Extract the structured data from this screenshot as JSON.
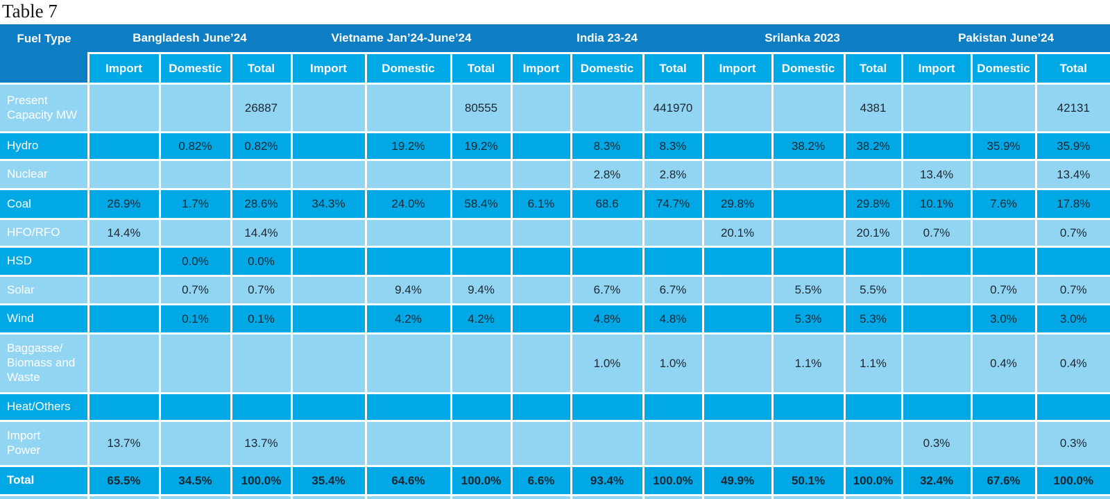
{
  "title": "Table 7",
  "colors": {
    "header_dark": "#0d7dc4",
    "row_medium": "#00a9e6",
    "row_light": "#92d5f3",
    "text_dark": "#1b2631",
    "text_light": "#ffffff"
  },
  "table": {
    "corner_label": "Fuel Type",
    "groups": [
      {
        "label": "Bangladesh June’24"
      },
      {
        "label": "Vietname Jan’24-June’24"
      },
      {
        "label": "India 23-24"
      },
      {
        "label": "Srilanka 2023"
      },
      {
        "label": "Pakistan June’24"
      }
    ],
    "sub_headers": [
      "Import",
      "Domestic",
      "Total"
    ],
    "rows": [
      {
        "label": "Present\nCapacity MW",
        "values": [
          "",
          "",
          "26887",
          "",
          "",
          "80555",
          "",
          "",
          "441970",
          "",
          "",
          "4381",
          "",
          "",
          "42131"
        ],
        "bold": false
      },
      {
        "label": "Hydro",
        "values": [
          "",
          "0.82%",
          "0.82%",
          "",
          "19.2%",
          "19.2%",
          "",
          "8.3%",
          "8.3%",
          "",
          "38.2%",
          "38.2%",
          "",
          "35.9%",
          "35.9%"
        ],
        "bold": false
      },
      {
        "label": "Nuclear",
        "values": [
          "",
          "",
          "",
          "",
          "",
          "",
          "",
          "2.8%",
          "2.8%",
          "",
          "",
          "",
          "13.4%",
          "",
          "13.4%"
        ],
        "bold": false
      },
      {
        "label": "Coal",
        "values": [
          "26.9%",
          "1.7%",
          "28.6%",
          "34.3%",
          "24.0%",
          "58.4%",
          "6.1%",
          "68.6",
          "74.7%",
          "29.8%",
          "",
          "29.8%",
          "10.1%",
          "7.6%",
          "17.8%"
        ],
        "bold": false
      },
      {
        "label": "HFO/RFO",
        "values": [
          "14.4%",
          "",
          "14.4%",
          "",
          "",
          "",
          "",
          "",
          "",
          "20.1%",
          "",
          "20.1%",
          "0.7%",
          "",
          "0.7%"
        ],
        "bold": false
      },
      {
        "label": "HSD",
        "values": [
          "",
          "0.0%",
          "0.0%",
          "",
          "",
          "",
          "",
          "",
          "",
          "",
          "",
          "",
          "",
          "",
          ""
        ],
        "bold": false
      },
      {
        "label": "Solar",
        "values": [
          "",
          "0.7%",
          "0.7%",
          "",
          "9.4%",
          "9.4%",
          "",
          "6.7%",
          "6.7%",
          "",
          "5.5%",
          "5.5%",
          "",
          "0.7%",
          "0.7%"
        ],
        "bold": false
      },
      {
        "label": "Wind",
        "values": [
          "",
          "0.1%",
          "0.1%",
          "",
          "4.2%",
          "4.2%",
          "",
          "4.8%",
          "4.8%",
          "",
          "5.3%",
          "5.3%",
          "",
          "3.0%",
          "3.0%"
        ],
        "bold": false
      },
      {
        "label": "Baggasse/\nBiomass and\nWaste",
        "values": [
          "",
          "",
          "",
          "",
          "",
          "",
          "",
          "1.0%",
          "1.0%",
          "",
          "1.1%",
          "1.1%",
          "",
          "0.4%",
          "0.4%"
        ],
        "bold": false
      },
      {
        "label": "Heat/Others",
        "values": [
          "",
          "",
          "",
          "",
          "",
          "",
          "",
          "",
          "",
          "",
          "",
          "",
          "",
          "",
          ""
        ],
        "bold": false
      },
      {
        "label": "Import\nPower",
        "values": [
          "13.7%",
          "",
          "13.7%",
          "",
          "",
          "",
          "",
          "",
          "",
          "",
          "",
          "",
          "0.3%",
          "",
          "0.3%"
        ],
        "bold": false
      },
      {
        "label": "Total",
        "values": [
          "65.5%",
          "34.5%",
          "100.0%",
          "35.4%",
          "64.6%",
          "100.0%",
          "6.6%",
          "93.4%",
          "100.0%",
          "49.9%",
          "50.1%",
          "100.0%",
          "32.4%",
          "67.6%",
          "100.0%"
        ],
        "bold": true
      },
      {
        "label": "",
        "values": [
          "",
          "",
          "",
          "",
          "",
          "",
          "",
          "",
          "",
          "",
          "",
          "",
          "",
          "",
          ""
        ],
        "bold": false
      }
    ]
  }
}
